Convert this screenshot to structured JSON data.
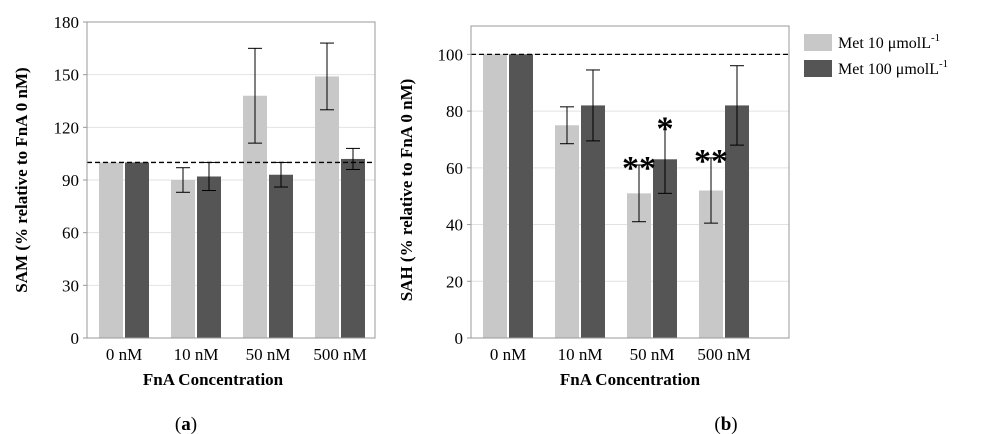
{
  "legend": [
    {
      "text": "Met 10 μmolL",
      "sup": "-1",
      "color": "#c8c8c8"
    },
    {
      "text": "Met 100 μmolL",
      "sup": "-1",
      "color": "#555555"
    }
  ],
  "chart_data": [
    {
      "type": "bar",
      "panel_label": {
        "pre": "(",
        "letter": "a",
        "post": ")"
      },
      "categories": [
        "0 nM",
        "10 nM",
        "50 nM",
        "500 nM"
      ],
      "series": [
        {
          "name": "Met 10 μmolL-1",
          "color": "#c8c8c8",
          "values": [
            100,
            90,
            138,
            149
          ],
          "errors": [
            0,
            7,
            27,
            19
          ]
        },
        {
          "name": "Met 100 μmolL-1",
          "color": "#555555",
          "values": [
            100,
            92,
            93,
            102
          ],
          "errors": [
            0,
            8,
            7,
            6
          ]
        }
      ],
      "xlabel": "FnA Concentration",
      "ylabel": "SAM (% relative to FnA 0 nM)",
      "ylim": [
        0,
        180
      ],
      "yticks": [
        0,
        30,
        60,
        90,
        120,
        150,
        180
      ],
      "reference_line": 100,
      "annotations": []
    },
    {
      "type": "bar",
      "panel_label": {
        "pre": "(",
        "letter": "b",
        "post": ")"
      },
      "categories": [
        "0 nM",
        "10 nM",
        "50 nM",
        "500 nM"
      ],
      "series": [
        {
          "name": "Met 10 μmolL-1",
          "color": "#c8c8c8",
          "values": [
            100,
            75,
            51,
            52
          ],
          "errors": [
            0,
            6.5,
            10,
            11.5
          ]
        },
        {
          "name": "Met 100 μmolL-1",
          "color": "#555555",
          "values": [
            100,
            82,
            63,
            82
          ],
          "errors": [
            0,
            12.5,
            12,
            14
          ]
        }
      ],
      "xlabel": "FnA Concentration",
      "ylabel": "SAH (% relative to FnA 0 nM)",
      "ylim": [
        0,
        110
      ],
      "yticks": [
        0,
        20,
        40,
        60,
        80,
        100
      ],
      "reference_line": 100,
      "annotations": [
        {
          "category": 2,
          "series": 0,
          "text": "**"
        },
        {
          "category": 2,
          "series": 1,
          "text": "*"
        },
        {
          "category": 3,
          "series": 0,
          "text": "**"
        }
      ]
    }
  ]
}
